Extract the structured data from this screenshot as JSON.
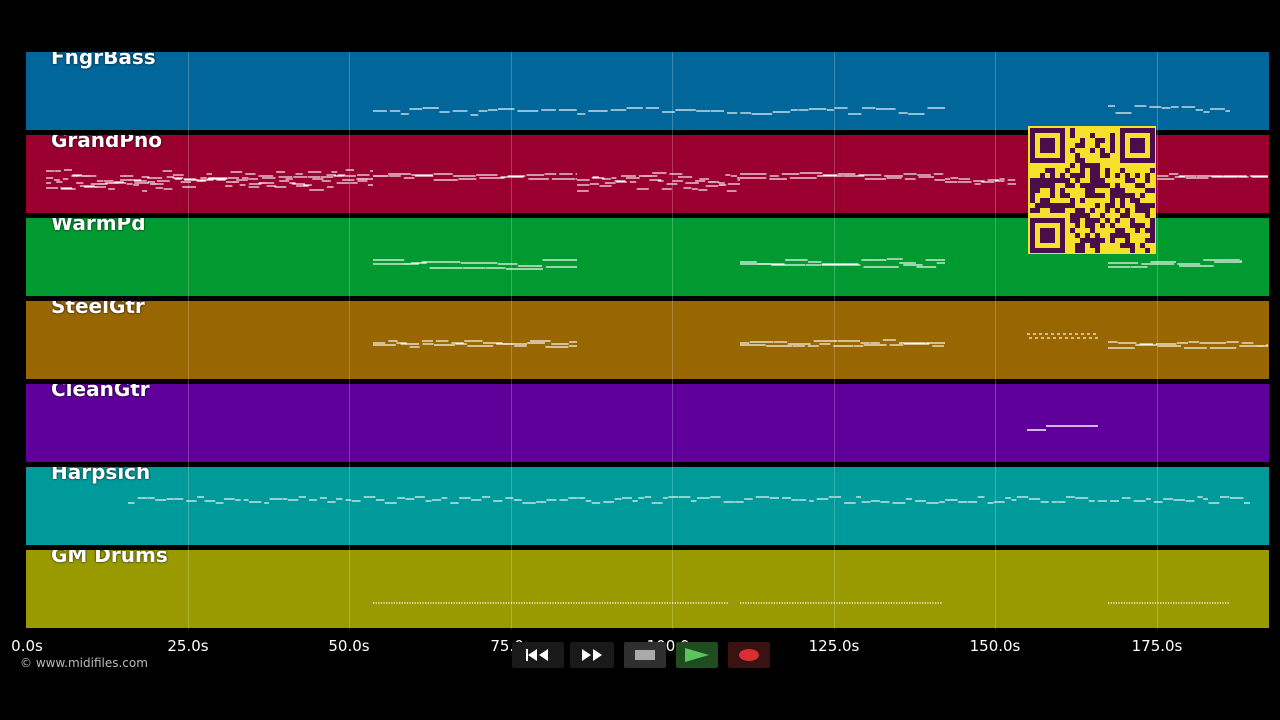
{
  "tracks": [
    {
      "name": "FngrBass",
      "color": "#016699"
    },
    {
      "name": "GrandPno",
      "color": "#990030"
    },
    {
      "name": "WarmPd",
      "color": "#009a30"
    },
    {
      "name": "SteelGtr",
      "color": "#986702"
    },
    {
      "name": "CleanGtr",
      "color": "#5f009a"
    },
    {
      "name": "Harpsich",
      "color": "#009a9a"
    },
    {
      "name": "GM Drums",
      "color": "#999a00"
    }
  ],
  "time_axis": {
    "ticks": [
      "0.0s",
      "25.0s",
      "50.0s",
      "75.0s",
      "100.0s",
      "125.0s",
      "150.0s",
      "175.0s"
    ]
  },
  "copyright": "© www.midifiles.com",
  "transport": {
    "rewind_icon": "rewind-icon",
    "fast_forward_icon": "fast-forward-icon",
    "stop_icon": "stop-icon",
    "play_icon": "play-icon",
    "record_icon": "record-icon"
  },
  "colors": {
    "background": "#000000",
    "note": "#ffffff",
    "qr_background": "#f5e02c",
    "qr_modules": "#4a0f4a"
  }
}
